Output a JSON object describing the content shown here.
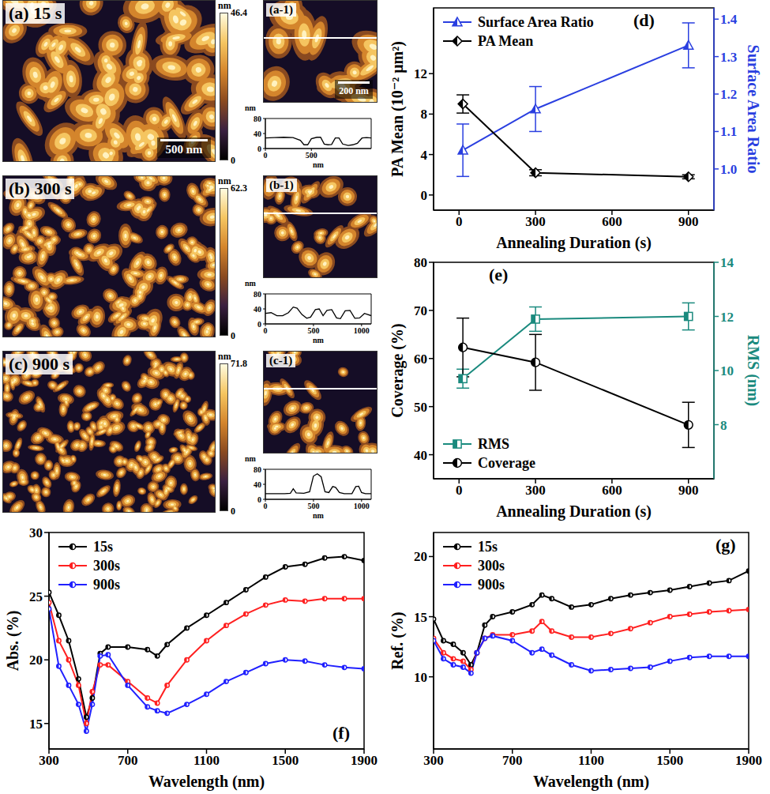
{
  "chart_data": [
    {
      "type": "image",
      "title": "(a) 15 s",
      "scale_bar": "500 nm",
      "colorbar": {
        "label": "nm",
        "range": [
          0,
          46.4
        ],
        "ticks": [
          0,
          46.4
        ]
      }
    },
    {
      "type": "image",
      "title": "(a-1)",
      "scale_bar": "200 nm"
    },
    {
      "type": "line",
      "x_label": "nm",
      "y_label": "nm",
      "color": "#000000",
      "x": [
        0,
        100,
        200,
        300,
        380,
        420,
        460,
        500,
        560,
        600,
        640,
        680,
        720,
        760,
        800,
        840,
        900,
        950,
        1000,
        1050,
        1100,
        1150
      ],
      "values": [
        28,
        29,
        30,
        29,
        22,
        10,
        10,
        26,
        30,
        30,
        12,
        10,
        11,
        28,
        28,
        12,
        8,
        10,
        14,
        28,
        29,
        28
      ],
      "xlim": [
        0,
        1150
      ],
      "xticks": [
        0,
        500
      ],
      "ylim": [
        0,
        80
      ],
      "yticks": [
        0,
        40,
        80
      ]
    },
    {
      "type": "image",
      "title": "(b) 300 s",
      "colorbar": {
        "label": "nm",
        "range": [
          0,
          62.3
        ],
        "ticks": [
          0,
          62.3
        ]
      }
    },
    {
      "type": "image",
      "title": "(b-1)"
    },
    {
      "type": "line",
      "x_label": "nm",
      "y_label": "nm",
      "color": "#000000",
      "x": [
        0,
        60,
        120,
        180,
        240,
        290,
        330,
        380,
        430,
        470,
        520,
        560,
        600,
        640,
        690,
        740,
        780,
        830,
        880,
        930,
        980,
        1030,
        1100
      ],
      "values": [
        28,
        30,
        22,
        22,
        30,
        45,
        42,
        25,
        15,
        18,
        38,
        40,
        22,
        36,
        38,
        16,
        14,
        35,
        36,
        15,
        16,
        28,
        22
      ],
      "xlim": [
        0,
        1100
      ],
      "xticks": [
        0,
        500,
        1000
      ],
      "ylim": [
        0,
        80
      ],
      "yticks": [
        0,
        40,
        80
      ]
    },
    {
      "type": "image",
      "title": "(c) 900 s",
      "colorbar": {
        "label": "nm",
        "range": [
          0,
          71.8
        ],
        "ticks": [
          0,
          71.8
        ]
      }
    },
    {
      "type": "image",
      "title": "(c-1)"
    },
    {
      "type": "line",
      "x_label": "nm",
      "y_label": "nm",
      "color": "#000000",
      "x": [
        0,
        100,
        200,
        260,
        290,
        320,
        400,
        460,
        500,
        540,
        580,
        620,
        660,
        700,
        730,
        770,
        820,
        900,
        940,
        970,
        1000,
        1040,
        1100
      ],
      "values": [
        15,
        15,
        15,
        16,
        28,
        17,
        16,
        20,
        62,
        68,
        60,
        20,
        18,
        34,
        32,
        18,
        15,
        15,
        34,
        35,
        18,
        15,
        15
      ],
      "xlim": [
        0,
        1100
      ],
      "xticks": [
        0,
        500,
        1000
      ],
      "ylim": [
        0,
        80
      ],
      "yticks": [
        0,
        40,
        80
      ]
    },
    {
      "type": "line",
      "title": "(d)",
      "x_label": "Annealing Duration (s)",
      "y_label": "PA Mean (10⁻² μm²)",
      "y2_label": "Surface Area Ratio",
      "x": [
        15,
        300,
        900
      ],
      "xlim": [
        -100,
        1000
      ],
      "xticks": [
        0,
        300,
        600,
        900
      ],
      "ylim": [
        -1.5,
        18.5
      ],
      "yticks": [
        0,
        4,
        8,
        12
      ],
      "y2lim": [
        0.89,
        1.43
      ],
      "y2ticks": [
        {
          "value": 1,
          "label": "1.0"
        },
        1.1,
        1.2,
        1.3,
        1.4
      ],
      "legend": "upper left",
      "series": [
        {
          "name": "Surface Area Ratio",
          "color": "#2a3fe0",
          "axis": "y2",
          "marker": "triangle",
          "line_style": "solid",
          "values": [
            1.05,
            1.16,
            1.33
          ],
          "errors": [
            0.07,
            0.06,
            0.06
          ]
        },
        {
          "name": "PA Mean",
          "color": "#000000",
          "marker": "diamond",
          "line_style": "solid",
          "values": [
            9.0,
            2.2,
            1.8
          ],
          "errors": [
            0.9,
            0.3,
            0.2
          ]
        }
      ]
    },
    {
      "type": "line",
      "title": "(e)",
      "x_label": "Annealing Duration (s)",
      "y_label": "Coverage (%)",
      "y2_label": "RMS (nm)",
      "x": [
        15,
        300,
        900
      ],
      "xlim": [
        -100,
        1000
      ],
      "xticks": [
        0,
        300,
        600,
        900
      ],
      "ylim": [
        35,
        80
      ],
      "yticks": [
        40,
        50,
        60,
        70,
        80
      ],
      "y2lim": [
        6,
        14
      ],
      "y2ticks": [
        8,
        10,
        12,
        14
      ],
      "legend": "lower left",
      "series": [
        {
          "name": "RMS",
          "color": "#1a8a7e",
          "axis": "y2",
          "marker": "square",
          "line_style": "solid",
          "values": [
            9.7,
            11.9,
            12.0
          ],
          "errors": [
            0.35,
            0.45,
            0.5
          ]
        },
        {
          "name": "Coverage",
          "color": "#000000",
          "marker": "circle",
          "line_style": "solid",
          "values": [
            62.3,
            59.2,
            46.2
          ],
          "errors": [
            6.1,
            5.8,
            4.7
          ]
        }
      ]
    },
    {
      "type": "line",
      "title": "(f)",
      "x_label": "Wavelength (nm)",
      "y_label": "Abs. (%)",
      "x": [
        300,
        350,
        400,
        450,
        490,
        520,
        560,
        600,
        700,
        800,
        850,
        900,
        1000,
        1100,
        1200,
        1300,
        1400,
        1500,
        1600,
        1700,
        1800,
        1900
      ],
      "xlim": [
        300,
        1900
      ],
      "xticks": [
        300,
        700,
        1100,
        1500,
        1900
      ],
      "ylim": [
        13,
        30
      ],
      "yticks": [
        15,
        20,
        25,
        30
      ],
      "legend": "upper left",
      "series": [
        {
          "name": "15s",
          "color": "#000000",
          "marker": "circle",
          "values": [
            25.3,
            23.5,
            21.5,
            18.5,
            15.5,
            17,
            20.5,
            21,
            21,
            20.8,
            20.3,
            21.2,
            22.5,
            23.5,
            24.5,
            25.5,
            26.5,
            27.3,
            27.5,
            28,
            28.1,
            27.8
          ]
        },
        {
          "name": "300s",
          "color": "#ff2020",
          "marker": "circle",
          "values": [
            24.5,
            21.5,
            20,
            18,
            15,
            17.5,
            19.6,
            19.6,
            18.3,
            17,
            16.6,
            18,
            20,
            21.5,
            22.7,
            23.6,
            24.3,
            24.7,
            24.6,
            24.8,
            24.8,
            24.8
          ]
        },
        {
          "name": "900s",
          "color": "#2020ff",
          "marker": "circle",
          "values": [
            24,
            19.5,
            18,
            16.5,
            14.4,
            16.5,
            20.3,
            20.4,
            18,
            16.3,
            16,
            15.8,
            16.5,
            17.3,
            18.3,
            19,
            19.7,
            20,
            19.9,
            19.6,
            19.4,
            19.3
          ]
        }
      ]
    },
    {
      "type": "line",
      "title": "(g)",
      "x_label": "Wavelength (nm)",
      "y_label": "Ref. (%)",
      "x": [
        300,
        350,
        400,
        450,
        490,
        520,
        560,
        600,
        700,
        800,
        850,
        900,
        1000,
        1100,
        1200,
        1300,
        1400,
        1500,
        1600,
        1700,
        1800,
        1900
      ],
      "xlim": [
        300,
        1900
      ],
      "xticks": [
        300,
        700,
        1100,
        1500,
        1900
      ],
      "ylim": [
        4,
        22
      ],
      "yticks": [
        10,
        15,
        20
      ],
      "legend": "upper left",
      "series": [
        {
          "name": "15s",
          "color": "#000000",
          "marker": "circle",
          "values": [
            14.8,
            13,
            12.7,
            12,
            11,
            12,
            14.3,
            15,
            15.4,
            16,
            16.8,
            16.5,
            15.8,
            16,
            16.5,
            16.8,
            17,
            17.2,
            17.5,
            17.8,
            18,
            18.8
          ]
        },
        {
          "name": "300s",
          "color": "#ff2020",
          "marker": "circle",
          "values": [
            13.2,
            12,
            11.5,
            11.3,
            10.6,
            12,
            13.2,
            13.5,
            13.5,
            13.8,
            14.6,
            13.8,
            13.3,
            13.3,
            13.6,
            14,
            14.5,
            15,
            15.2,
            15.4,
            15.5,
            15.6
          ]
        },
        {
          "name": "900s",
          "color": "#2020ff",
          "marker": "circle",
          "values": [
            13,
            11.5,
            11,
            10.8,
            10.3,
            12,
            13.2,
            13.4,
            13,
            12,
            12.3,
            11.8,
            11,
            10.5,
            10.6,
            10.7,
            10.8,
            11.3,
            11.6,
            11.7,
            11.7,
            11.7
          ]
        }
      ]
    }
  ]
}
